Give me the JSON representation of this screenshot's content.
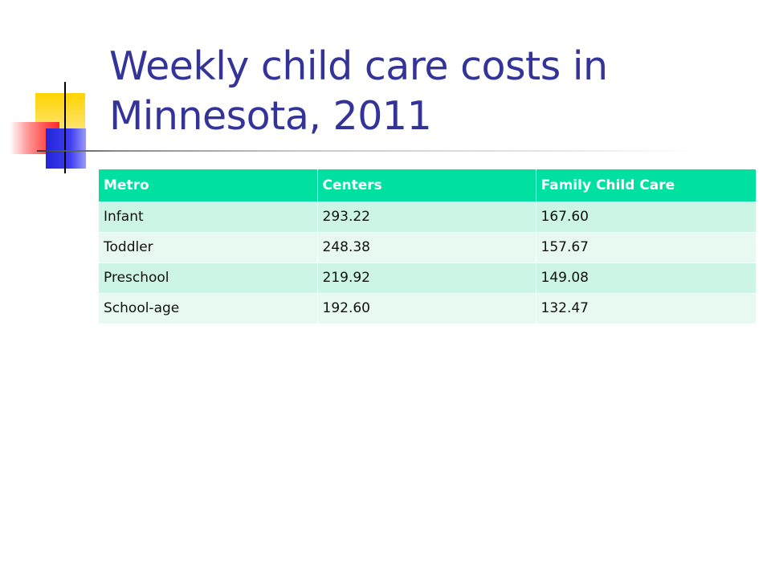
{
  "slide": {
    "title": "Weekly child care costs in Minnesota, 2011"
  },
  "colors": {
    "title": "#333399",
    "header_bg": "#00e0a0",
    "row_odd_bg": "#cdf5e6",
    "row_even_bg": "#e8f9f2"
  },
  "chart_data": {
    "type": "table",
    "columns": [
      "Metro",
      "Centers",
      "Family Child Care"
    ],
    "rows": [
      [
        "Infant",
        "293.22",
        "167.60"
      ],
      [
        "Toddler",
        "248.38",
        "157.67"
      ],
      [
        "Preschool",
        "219.92",
        "149.08"
      ],
      [
        "School-age",
        "192.60",
        "132.47"
      ]
    ]
  }
}
